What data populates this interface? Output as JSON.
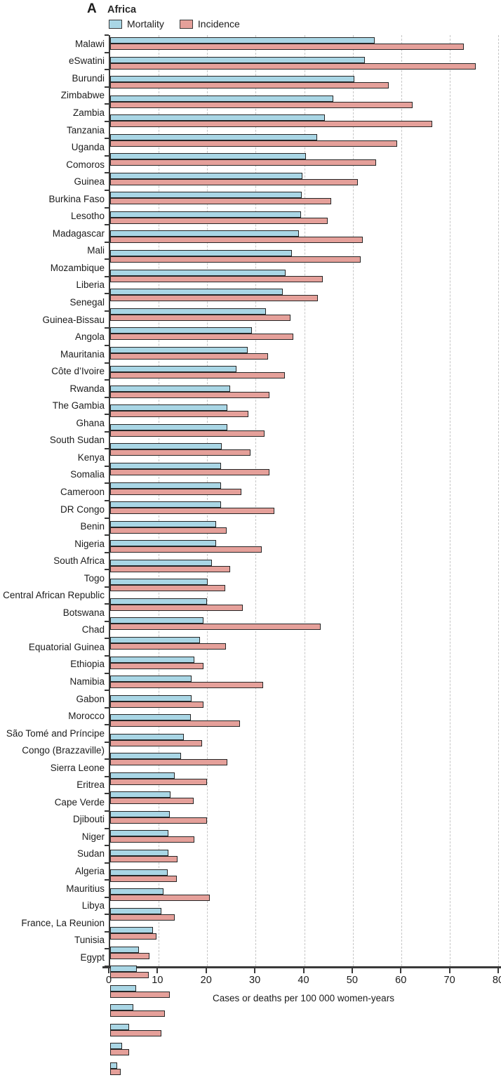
{
  "panel": {
    "label": "A",
    "title": "Africa"
  },
  "legend": {
    "items": [
      {
        "label": "Mortality",
        "color": "#a9d6e5"
      },
      {
        "label": "Incidence",
        "color": "#e5a09a"
      }
    ]
  },
  "colors": {
    "mortality": "#a9d6e5",
    "incidence": "#e5a09a",
    "bar_border": "#262626",
    "axis": "#3a3a3a",
    "gridline": "#c6c6c6",
    "background": "#ffffff"
  },
  "chart_data": {
    "type": "bar",
    "orientation": "horizontal",
    "title": "Africa",
    "panel_label": "A",
    "xlabel": "Cases or deaths per 100 000 women-years",
    "ylabel": "",
    "xlim": [
      0,
      80
    ],
    "xticks": [
      0,
      10,
      20,
      30,
      40,
      50,
      60,
      70,
      80
    ],
    "grid": "dashed-vertical",
    "legend_position": "top-left",
    "categories": [
      "Malawi",
      "eSwatini",
      "Burundi",
      "Zimbabwe",
      "Zambia",
      "Tanzania",
      "Uganda",
      "Comoros",
      "Guinea",
      "Burkina Faso",
      "Lesotho",
      "Madagascar",
      "Mali",
      "Mozambique",
      "Liberia",
      "Senegal",
      "Guinea-Bissau",
      "Angola",
      "Mauritania",
      "Côte d’Ivoire",
      "Rwanda",
      "The Gambia",
      "Ghana",
      "South Sudan",
      "Kenya",
      "Somalia",
      "Cameroon",
      "DR Congo",
      "Benin",
      "Nigeria",
      "South Africa",
      "Togo",
      "Central African Republic",
      "Botswana",
      "Chad",
      "Equatorial Guinea",
      "Ethiopia",
      "Namibia",
      "Gabon",
      "Morocco",
      "São Tomé and Príncipe",
      "Congo (Brazzaville)",
      "Sierra Leone",
      "Eritrea",
      "Cape Verde",
      "Djibouti",
      "Niger",
      "Sudan",
      "Algeria",
      "Mauritius",
      "Libya",
      "France, La Reunion",
      "Tunisia",
      "Egypt"
    ],
    "series": [
      {
        "name": "Mortality",
        "color": "#a9d6e5",
        "values": [
          54.5,
          52.5,
          50.3,
          46.0,
          44.3,
          42.7,
          40.3,
          39.6,
          39.5,
          39.3,
          38.9,
          37.4,
          36.2,
          35.6,
          32.1,
          29.2,
          28.3,
          26.1,
          24.7,
          24.1,
          24.1,
          23.0,
          22.9,
          22.9,
          22.8,
          21.8,
          21.8,
          21.0,
          20.1,
          19.9,
          19.2,
          18.5,
          17.4,
          16.8,
          16.8,
          16.6,
          15.2,
          14.6,
          13.3,
          12.5,
          12.3,
          12.0,
          12.0,
          11.9,
          11.0,
          10.5,
          8.8,
          5.9,
          5.5,
          5.4,
          4.8,
          3.9,
          2.5,
          1.5
        ]
      },
      {
        "name": "Incidence",
        "color": "#e5a09a",
        "values": [
          72.9,
          75.3,
          57.4,
          62.3,
          66.4,
          59.1,
          54.8,
          51.0,
          45.5,
          44.9,
          52.1,
          51.6,
          43.9,
          42.8,
          37.2,
          37.8,
          32.6,
          36.0,
          32.8,
          28.5,
          31.8,
          28.9,
          32.8,
          27.0,
          33.8,
          24.0,
          31.2,
          24.8,
          23.7,
          27.3,
          43.4,
          23.8,
          19.2,
          31.6,
          19.2,
          26.8,
          18.9,
          24.1,
          20.0,
          17.2,
          20.0,
          17.4,
          13.9,
          13.8,
          20.5,
          13.3,
          9.5,
          8.1,
          8.0,
          12.3,
          11.3,
          10.5,
          3.9,
          2.2
        ]
      }
    ]
  },
  "axis": {
    "xlabel": "Cases or deaths per 100 000 women-years"
  }
}
